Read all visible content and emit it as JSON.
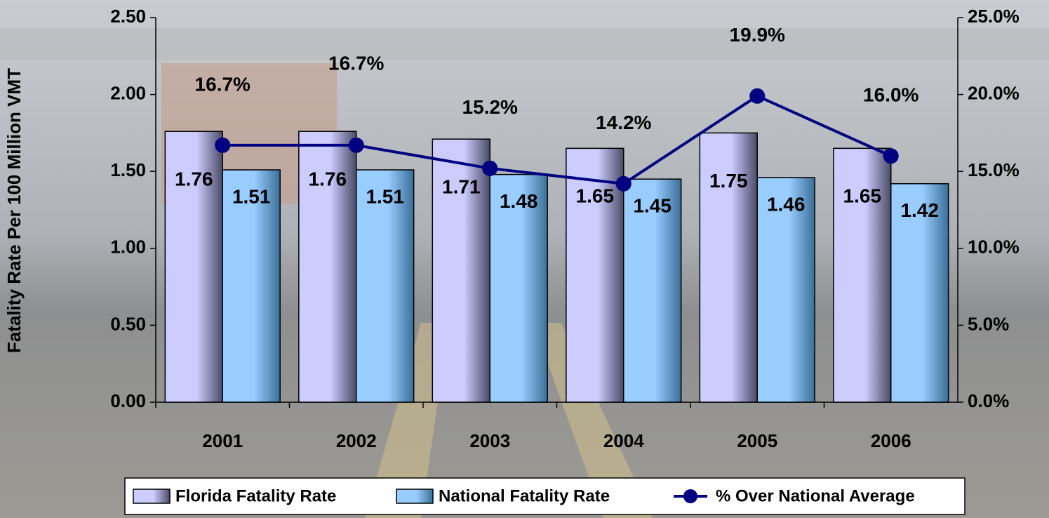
{
  "chart_data": {
    "type": "bar",
    "y_label": "Fatality Rate Per 100 Million VMT",
    "categories": [
      "2001",
      "2002",
      "2003",
      "2004",
      "2005",
      "2006"
    ],
    "series": [
      {
        "name": "Florida Fatality Rate",
        "color": "#ccccff",
        "values": [
          1.76,
          1.76,
          1.71,
          1.65,
          1.75,
          1.65
        ]
      },
      {
        "name": "National Fatality Rate",
        "color": "#99ccff",
        "values": [
          1.51,
          1.51,
          1.48,
          1.45,
          1.46,
          1.42
        ]
      },
      {
        "name": "% Over National Average",
        "type": "line",
        "axis": "y2",
        "color": "#000080",
        "values": [
          16.7,
          16.7,
          15.2,
          14.2,
          19.9,
          16.0
        ],
        "value_labels": [
          "16.7%",
          "16.7%",
          "15.2%",
          "14.2%",
          "19.9%",
          "16.0%"
        ]
      }
    ],
    "ylim": [
      0,
      2.5
    ],
    "yticks": [
      {
        "value": 0,
        "label": "0.00"
      },
      {
        "value": 0.5,
        "label": "0.50"
      },
      {
        "value": 1,
        "label": "1.00"
      },
      {
        "value": 1.5,
        "label": "1.50"
      },
      {
        "value": 2,
        "label": "2.00"
      },
      {
        "value": 2.5,
        "label": "2.50"
      }
    ],
    "y2lim": [
      0,
      25
    ],
    "y2ticks": [
      {
        "value": 0,
        "label": "0.0%"
      },
      {
        "value": 5,
        "label": "5.0%"
      },
      {
        "value": 10,
        "label": "10.0%"
      },
      {
        "value": 15,
        "label": "15.0%"
      },
      {
        "value": 20,
        "label": "20.0%"
      },
      {
        "value": 25,
        "label": "25.0%"
      }
    ],
    "legend": "bottom"
  }
}
